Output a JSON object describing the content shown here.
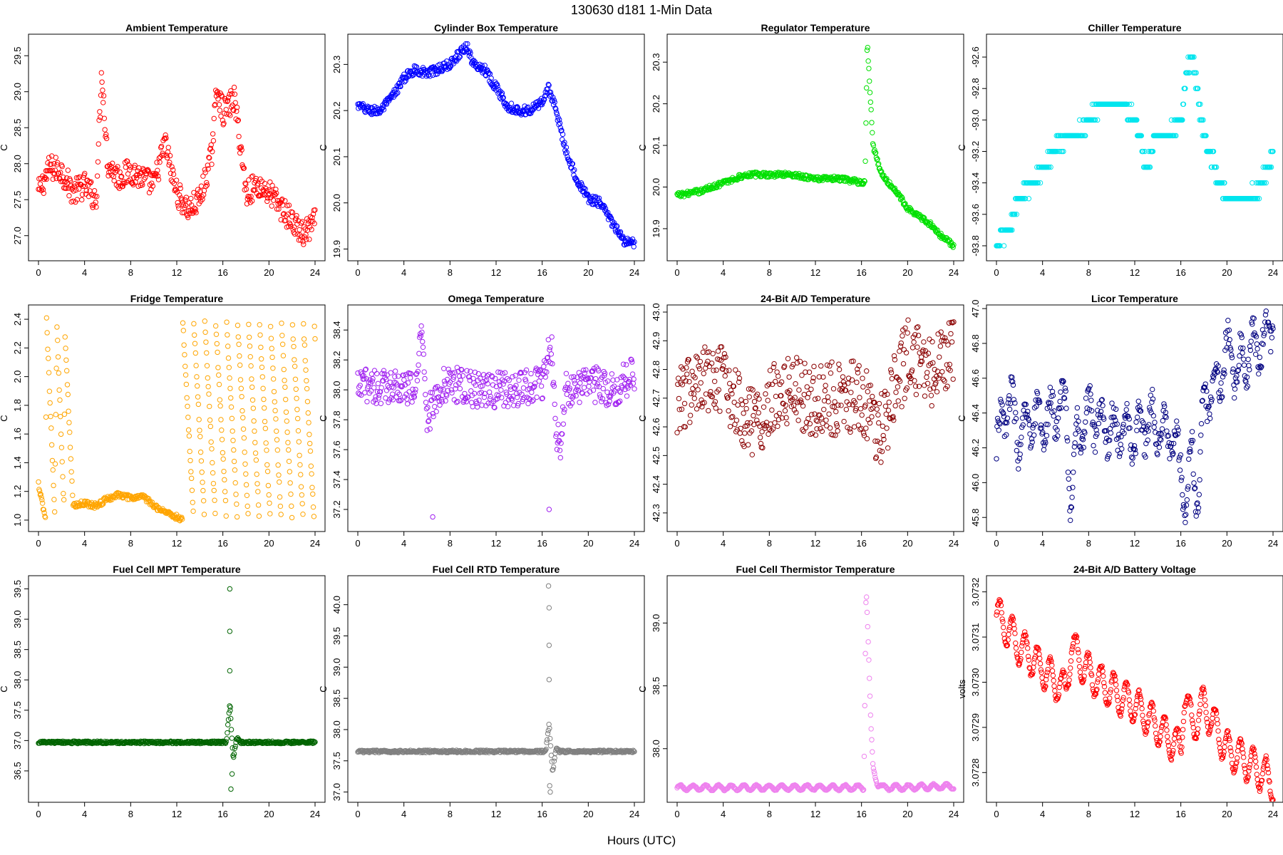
{
  "figure": {
    "title": "130630    d181    1-Min Data",
    "xlabel": "Hours (UTC)"
  },
  "chart_data": [
    {
      "type": "scatter",
      "title": "Ambient Temperature",
      "ylabel": "C",
      "color": "#ff0000",
      "xlim": [
        0,
        24
      ],
      "ylim": [
        26.75,
        29.7
      ],
      "xticks": [
        0,
        4,
        8,
        12,
        16,
        20,
        24
      ],
      "yticks": [
        27.0,
        27.5,
        28.0,
        28.5,
        29.0,
        29.5
      ],
      "ydec": 1,
      "series": [
        {
          "name": "ambient",
          "x": [
            0,
            1,
            2,
            3,
            4,
            5,
            5.5,
            6,
            7,
            8,
            9,
            10,
            11,
            11.5,
            12,
            13,
            14,
            15,
            15.5,
            16,
            17,
            17.5,
            18,
            19,
            20,
            21,
            22,
            23,
            24
          ],
          "y": [
            27.6,
            27.95,
            27.9,
            27.6,
            27.7,
            27.5,
            29.3,
            28.0,
            27.8,
            27.9,
            27.8,
            27.7,
            28.3,
            27.9,
            27.6,
            27.35,
            27.5,
            28.1,
            29.1,
            28.7,
            28.9,
            28.3,
            27.6,
            27.7,
            27.6,
            27.4,
            27.2,
            27.0,
            27.2
          ]
        }
      ],
      "noise": 0.18
    },
    {
      "type": "scatter",
      "title": "Cylinder Box Temperature",
      "ylabel": "C",
      "color": "#0000ff",
      "xlim": [
        0,
        24
      ],
      "ylim": [
        19.89,
        20.35
      ],
      "xticks": [
        0,
        4,
        8,
        12,
        16,
        20,
        24
      ],
      "yticks": [
        19.9,
        20.0,
        20.1,
        20.2,
        20.3
      ],
      "ydec": 1,
      "series": [
        {
          "name": "cylinder_box",
          "x": [
            0,
            1,
            2,
            3,
            4,
            5,
            6,
            7,
            8,
            9,
            9.5,
            10,
            11,
            12,
            13,
            14,
            15,
            16,
            16.5,
            17,
            18,
            19,
            20,
            21,
            22,
            23,
            24
          ],
          "y": [
            20.21,
            20.2,
            20.2,
            20.23,
            20.27,
            20.29,
            20.28,
            20.29,
            20.3,
            20.33,
            20.34,
            20.3,
            20.29,
            20.25,
            20.21,
            20.2,
            20.2,
            20.22,
            20.25,
            20.22,
            20.12,
            20.05,
            20.01,
            20.0,
            19.96,
            19.92,
            19.91
          ]
        }
      ],
      "noise": 0.01
    },
    {
      "type": "scatter",
      "title": "Regulator Temperature",
      "ylabel": "C",
      "color": "#00e000",
      "xlim": [
        0,
        24
      ],
      "ylim": [
        19.84,
        20.35
      ],
      "xticks": [
        0,
        4,
        8,
        12,
        16,
        20,
        24
      ],
      "yticks": [
        19.9,
        20.0,
        20.1,
        20.2,
        20.3
      ],
      "ydec": 1,
      "series": [
        {
          "name": "regulator",
          "x": [
            0,
            2,
            4,
            6,
            8,
            10,
            12,
            14,
            16.3,
            16.5,
            17,
            17.5,
            18,
            19,
            20,
            21,
            22,
            23,
            24
          ],
          "y": [
            19.98,
            19.99,
            20.01,
            20.03,
            20.03,
            20.03,
            20.02,
            20.02,
            20.01,
            20.35,
            20.1,
            20.05,
            20.02,
            19.99,
            19.95,
            19.93,
            19.91,
            19.88,
            19.86
          ]
        }
      ],
      "noise": 0.006
    },
    {
      "type": "scatter",
      "title": "Chiller Temperature",
      "ylabel": "C",
      "color": "#00e5ee",
      "xlim": [
        0,
        24
      ],
      "ylim": [
        -93.85,
        -92.5
      ],
      "xticks": [
        0,
        4,
        8,
        12,
        16,
        20,
        24
      ],
      "yticks": [
        -93.8,
        -93.6,
        -93.4,
        -93.2,
        -93.0,
        -92.8,
        -92.6
      ],
      "ydec": 1,
      "series": [
        {
          "name": "chiller",
          "x": [
            0,
            1,
            2,
            3,
            4,
            5,
            6,
            7,
            8,
            9,
            10,
            11,
            12,
            13,
            14,
            15,
            16,
            16.5,
            17,
            18,
            19,
            20,
            21,
            22,
            23,
            24
          ],
          "y": [
            -93.8,
            -93.7,
            -93.5,
            -93.4,
            -93.3,
            -93.2,
            -93.1,
            -93.1,
            -93.0,
            -92.9,
            -92.9,
            -92.9,
            -93.0,
            -93.3,
            -93.1,
            -93.1,
            -93.0,
            -92.7,
            -92.6,
            -93.1,
            -93.3,
            -93.5,
            -93.5,
            -93.5,
            -93.4,
            -93.2
          ]
        }
      ],
      "noise": 0.05,
      "quantize": 0.1
    },
    {
      "type": "scatter",
      "title": "Fridge Temperature",
      "ylabel": "C",
      "color": "#ffa500",
      "xlim": [
        0,
        24
      ],
      "ylim": [
        0.97,
        2.45
      ],
      "xticks": [
        0,
        4,
        8,
        12,
        16,
        20,
        24
      ],
      "yticks": [
        1.0,
        1.2,
        1.4,
        1.6,
        1.8,
        2.0,
        2.2,
        2.4
      ],
      "ydec": 1,
      "series": [
        {
          "name": "fridge",
          "x": [
            0,
            0.6,
            0.7,
            1.4,
            1.6,
            2.2,
            2.3,
            3,
            4,
            5,
            6,
            7,
            8,
            9,
            10,
            11,
            12,
            12.5,
            13,
            24
          ],
          "y": [
            1.25,
            1.0,
            2.4,
            1.05,
            2.35,
            1.1,
            2.3,
            1.1,
            1.12,
            1.1,
            1.15,
            1.18,
            1.15,
            1.17,
            1.1,
            1.06,
            1.02,
            1.0,
            2.4,
            1.05
          ]
        }
      ],
      "noise": 0.02,
      "sawtooth": {
        "start": 12.5,
        "period": 0.95,
        "min": 1.02,
        "max": 2.42
      }
    },
    {
      "type": "scatter",
      "title": "Omega Temperature",
      "ylabel": "C",
      "color": "#a020f0",
      "xlim": [
        0,
        24
      ],
      "ylim": [
        37.1,
        38.52
      ],
      "xticks": [
        0,
        4,
        8,
        12,
        16,
        20,
        24
      ],
      "yticks": [
        37.2,
        37.4,
        37.6,
        37.8,
        38.0,
        38.2,
        38.4
      ],
      "ydec": 1,
      "series": [
        {
          "name": "omega",
          "x": [
            0,
            1,
            2,
            3,
            4,
            5,
            5.6,
            6,
            6.5,
            7,
            8,
            10,
            12,
            14,
            16,
            16.8,
            17.2,
            17.6,
            18,
            20,
            22,
            24
          ],
          "y": [
            38.0,
            38.05,
            38.0,
            38.05,
            38.0,
            38.0,
            38.45,
            37.8,
            37.9,
            38.0,
            38.05,
            38.0,
            38.0,
            38.0,
            38.05,
            38.3,
            37.7,
            37.6,
            38.0,
            38.05,
            38.0,
            38.1
          ]
        }
      ],
      "noise": 0.12,
      "outliers": [
        [
          6.5,
          37.15
        ],
        [
          16.6,
          37.2
        ]
      ]
    },
    {
      "type": "scatter",
      "title": "24-Bit A/D Temperature",
      "ylabel": "C",
      "color": "#8b0000",
      "xlim": [
        0,
        24
      ],
      "ylim": [
        42.26,
        43.0
      ],
      "xticks": [
        0,
        4,
        8,
        12,
        16,
        20,
        24
      ],
      "yticks": [
        42.3,
        42.4,
        42.5,
        42.6,
        42.7,
        42.8,
        42.9,
        43.0
      ],
      "ydec": 1,
      "series": [
        {
          "name": "ad_temp",
          "x": [
            0,
            2,
            4,
            6,
            7,
            8,
            10,
            12,
            14,
            16,
            17,
            18,
            19,
            20,
            22,
            24
          ],
          "y": [
            42.7,
            42.75,
            42.75,
            42.65,
            42.6,
            42.7,
            42.72,
            42.7,
            42.7,
            42.72,
            42.6,
            42.6,
            42.75,
            42.85,
            42.8,
            42.85
          ]
        }
      ],
      "noise": 0.13
    },
    {
      "type": "scatter",
      "title": "Licor Temperature",
      "ylabel": "C",
      "color": "#000080",
      "xlim": [
        0,
        24
      ],
      "ylim": [
        45.76,
        46.98
      ],
      "xticks": [
        0,
        4,
        8,
        12,
        16,
        20,
        24
      ],
      "yticks": [
        45.8,
        46.0,
        46.2,
        46.4,
        46.6,
        46.8,
        47.0
      ],
      "ydec": 1,
      "series": [
        {
          "name": "licor",
          "x": [
            0,
            1,
            2,
            3,
            4,
            5,
            6,
            6.5,
            7,
            8,
            9,
            10,
            11,
            12,
            13,
            14,
            15,
            16,
            16.5,
            17,
            17.5,
            18,
            19,
            20,
            21,
            22,
            23,
            24
          ],
          "y": [
            46.2,
            46.5,
            46.25,
            46.35,
            46.35,
            46.4,
            46.45,
            45.85,
            46.3,
            46.4,
            46.35,
            46.3,
            46.3,
            46.25,
            46.35,
            46.35,
            46.3,
            46.1,
            45.85,
            46.2,
            45.9,
            46.5,
            46.55,
            46.75,
            46.65,
            46.75,
            46.8,
            46.95
          ]
        }
      ],
      "noise": 0.08,
      "wave": {
        "amp": 0.12,
        "period": 1.1
      }
    },
    {
      "type": "scatter",
      "title": "Fuel Cell MPT Temperature",
      "ylabel": "C",
      "color": "#006400",
      "xlim": [
        0,
        24
      ],
      "ylim": [
        36.1,
        39.6
      ],
      "xticks": [
        0,
        4,
        8,
        12,
        16,
        20,
        24
      ],
      "yticks": [
        36.5,
        37.0,
        37.5,
        38.0,
        38.5,
        39.0,
        39.5
      ],
      "ydec": 1,
      "series": [
        {
          "name": "fc_mpt",
          "x": [
            0,
            8,
            16.3,
            16.6,
            16.9,
            17.2,
            17.5,
            24
          ],
          "y": [
            36.97,
            36.97,
            36.97,
            37.6,
            36.7,
            37.05,
            36.97,
            36.97
          ]
        }
      ],
      "noise": 0.02,
      "outliers": [
        [
          16.6,
          39.5
        ],
        [
          16.6,
          38.8
        ],
        [
          16.6,
          38.15
        ],
        [
          16.65,
          37.55
        ],
        [
          16.7,
          36.2
        ],
        [
          16.8,
          36.45
        ]
      ]
    },
    {
      "type": "scatter",
      "title": "Fuel Cell RTD Temperature",
      "ylabel": "C",
      "color": "#808080",
      "xlim": [
        0,
        24
      ],
      "ylim": [
        36.95,
        40.35
      ],
      "xticks": [
        0,
        4,
        8,
        12,
        16,
        20,
        24
      ],
      "yticks": [
        37.0,
        37.5,
        38.0,
        38.5,
        39.0,
        39.5,
        40.0
      ],
      "ydec": 1,
      "series": [
        {
          "name": "fc_rtd",
          "x": [
            0,
            8,
            16.3,
            16.6,
            16.9,
            17.2,
            17.5,
            24
          ],
          "y": [
            37.65,
            37.65,
            37.65,
            38.1,
            37.3,
            37.7,
            37.65,
            37.65
          ]
        }
      ],
      "noise": 0.02,
      "outliers": [
        [
          16.55,
          40.3
        ],
        [
          16.6,
          39.95
        ],
        [
          16.6,
          39.35
        ],
        [
          16.6,
          38.8
        ],
        [
          16.65,
          37.1
        ],
        [
          16.7,
          37.0
        ]
      ]
    },
    {
      "type": "scatter",
      "title": "Fuel Cell Thermistor Temperature",
      "ylabel": "C",
      "color": "#ee82ee",
      "xlim": [
        0,
        24
      ],
      "ylim": [
        37.63,
        39.32
      ],
      "xticks": [
        0,
        4,
        8,
        12,
        16,
        20,
        24
      ],
      "yticks": [
        38.0,
        38.5,
        39.0
      ],
      "ydec": 1,
      "series": [
        {
          "name": "fc_thermistor",
          "x": [
            0,
            8,
            16.2,
            16.4,
            16.6,
            16.8,
            17.0,
            17.4,
            17.8,
            24
          ],
          "y": [
            37.69,
            37.69,
            37.69,
            39.3,
            38.8,
            38.2,
            37.85,
            37.72,
            37.69,
            37.7
          ]
        }
      ],
      "noise": 0.005,
      "wave": {
        "amp": 0.02,
        "period": 1.1
      }
    },
    {
      "type": "scatter",
      "title": "24-Bit A/D Battery Voltage",
      "ylabel": "volts",
      "color": "#ff0000",
      "xlim": [
        0,
        24
      ],
      "ylim": [
        3.07275,
        3.07322
      ],
      "xticks": [
        0,
        4,
        8,
        12,
        16,
        20,
        24
      ],
      "yticks": [
        3.0728,
        3.0729,
        3.073,
        3.0731,
        3.0732
      ],
      "ydec": 4,
      "series": [
        {
          "name": "battery_voltage",
          "x": [
            0,
            2,
            4,
            6,
            6.5,
            8,
            10,
            12,
            14,
            16,
            16.3,
            17,
            18,
            20,
            22,
            24
          ],
          "y": [
            3.07315,
            3.07308,
            3.07303,
            3.07298,
            3.07308,
            3.07302,
            3.07298,
            3.07295,
            3.0729,
            3.07285,
            3.07298,
            3.0729,
            3.07295,
            3.07285,
            3.07282,
            3.07278
          ]
        }
      ],
      "noise": 5e-06,
      "wave": {
        "amp": 4e-05,
        "period": 1.1
      }
    }
  ]
}
